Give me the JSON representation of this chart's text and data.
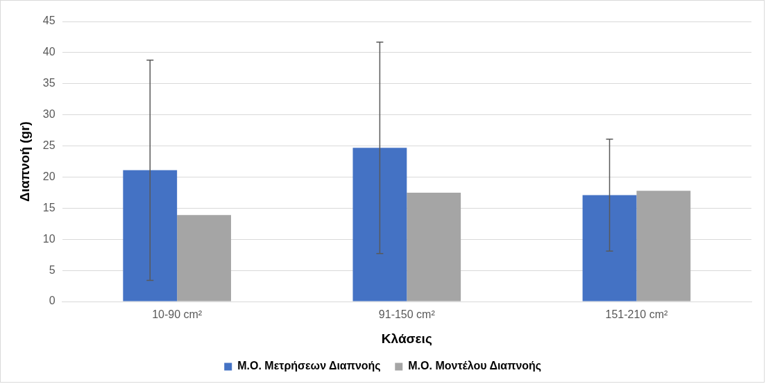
{
  "chart_data": {
    "type": "bar",
    "xlabel": "Κλάσεις",
    "ylabel": "Διαπνοή (gr)",
    "categories": [
      "10-90 cm²",
      "91-150 cm²",
      "151-210 cm²"
    ],
    "series": [
      {
        "name": "Μ.Ο. Μετρήσεων Διαπνοής",
        "color": "#4472c4",
        "values": [
          21.1,
          24.7,
          17.1
        ],
        "errors": [
          17.7,
          17.0,
          9.0
        ]
      },
      {
        "name": "Μ.Ο. Μοντέλου Διαπνοής",
        "color": "#a5a5a5",
        "values": [
          13.9,
          17.5,
          17.8
        ]
      }
    ],
    "ylim": [
      0,
      45
    ],
    "yticks": [
      0,
      5,
      10,
      15,
      20,
      25,
      30,
      35,
      40,
      45
    ],
    "grid": "y",
    "legend": "bottom"
  }
}
